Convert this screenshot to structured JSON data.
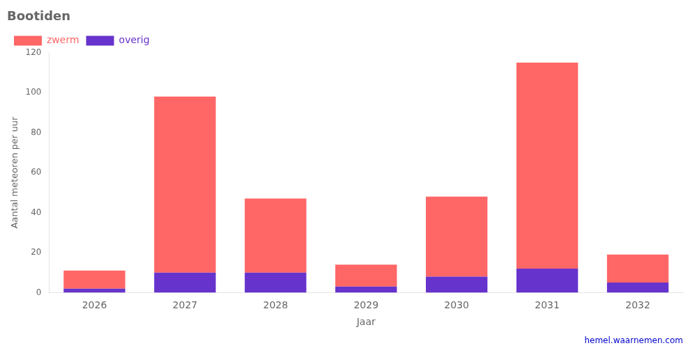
{
  "chart_data": {
    "type": "bar",
    "title": "Bootiden",
    "x_label": "Jaar",
    "y_label": "Aantal meteoren per uur",
    "categories": [
      "2026",
      "2027",
      "2028",
      "2029",
      "2030",
      "2031",
      "2032"
    ],
    "series": [
      {
        "name": "overig",
        "color": "#6633CC",
        "values": [
          2,
          10,
          10,
          3,
          8,
          12,
          5
        ]
      },
      {
        "name": "zwerm",
        "color": "#FF6666",
        "values": [
          9,
          88,
          37,
          11,
          40,
          103,
          14
        ]
      }
    ],
    "stacked": true,
    "ylim": [
      0,
      120
    ],
    "yticks": [
      0,
      20,
      40,
      60,
      80,
      100,
      120
    ],
    "grid": false,
    "legend": "upper left",
    "annotations": [
      {
        "text": "hemel.waarnemen.com",
        "color": "#0000CC"
      }
    ]
  }
}
